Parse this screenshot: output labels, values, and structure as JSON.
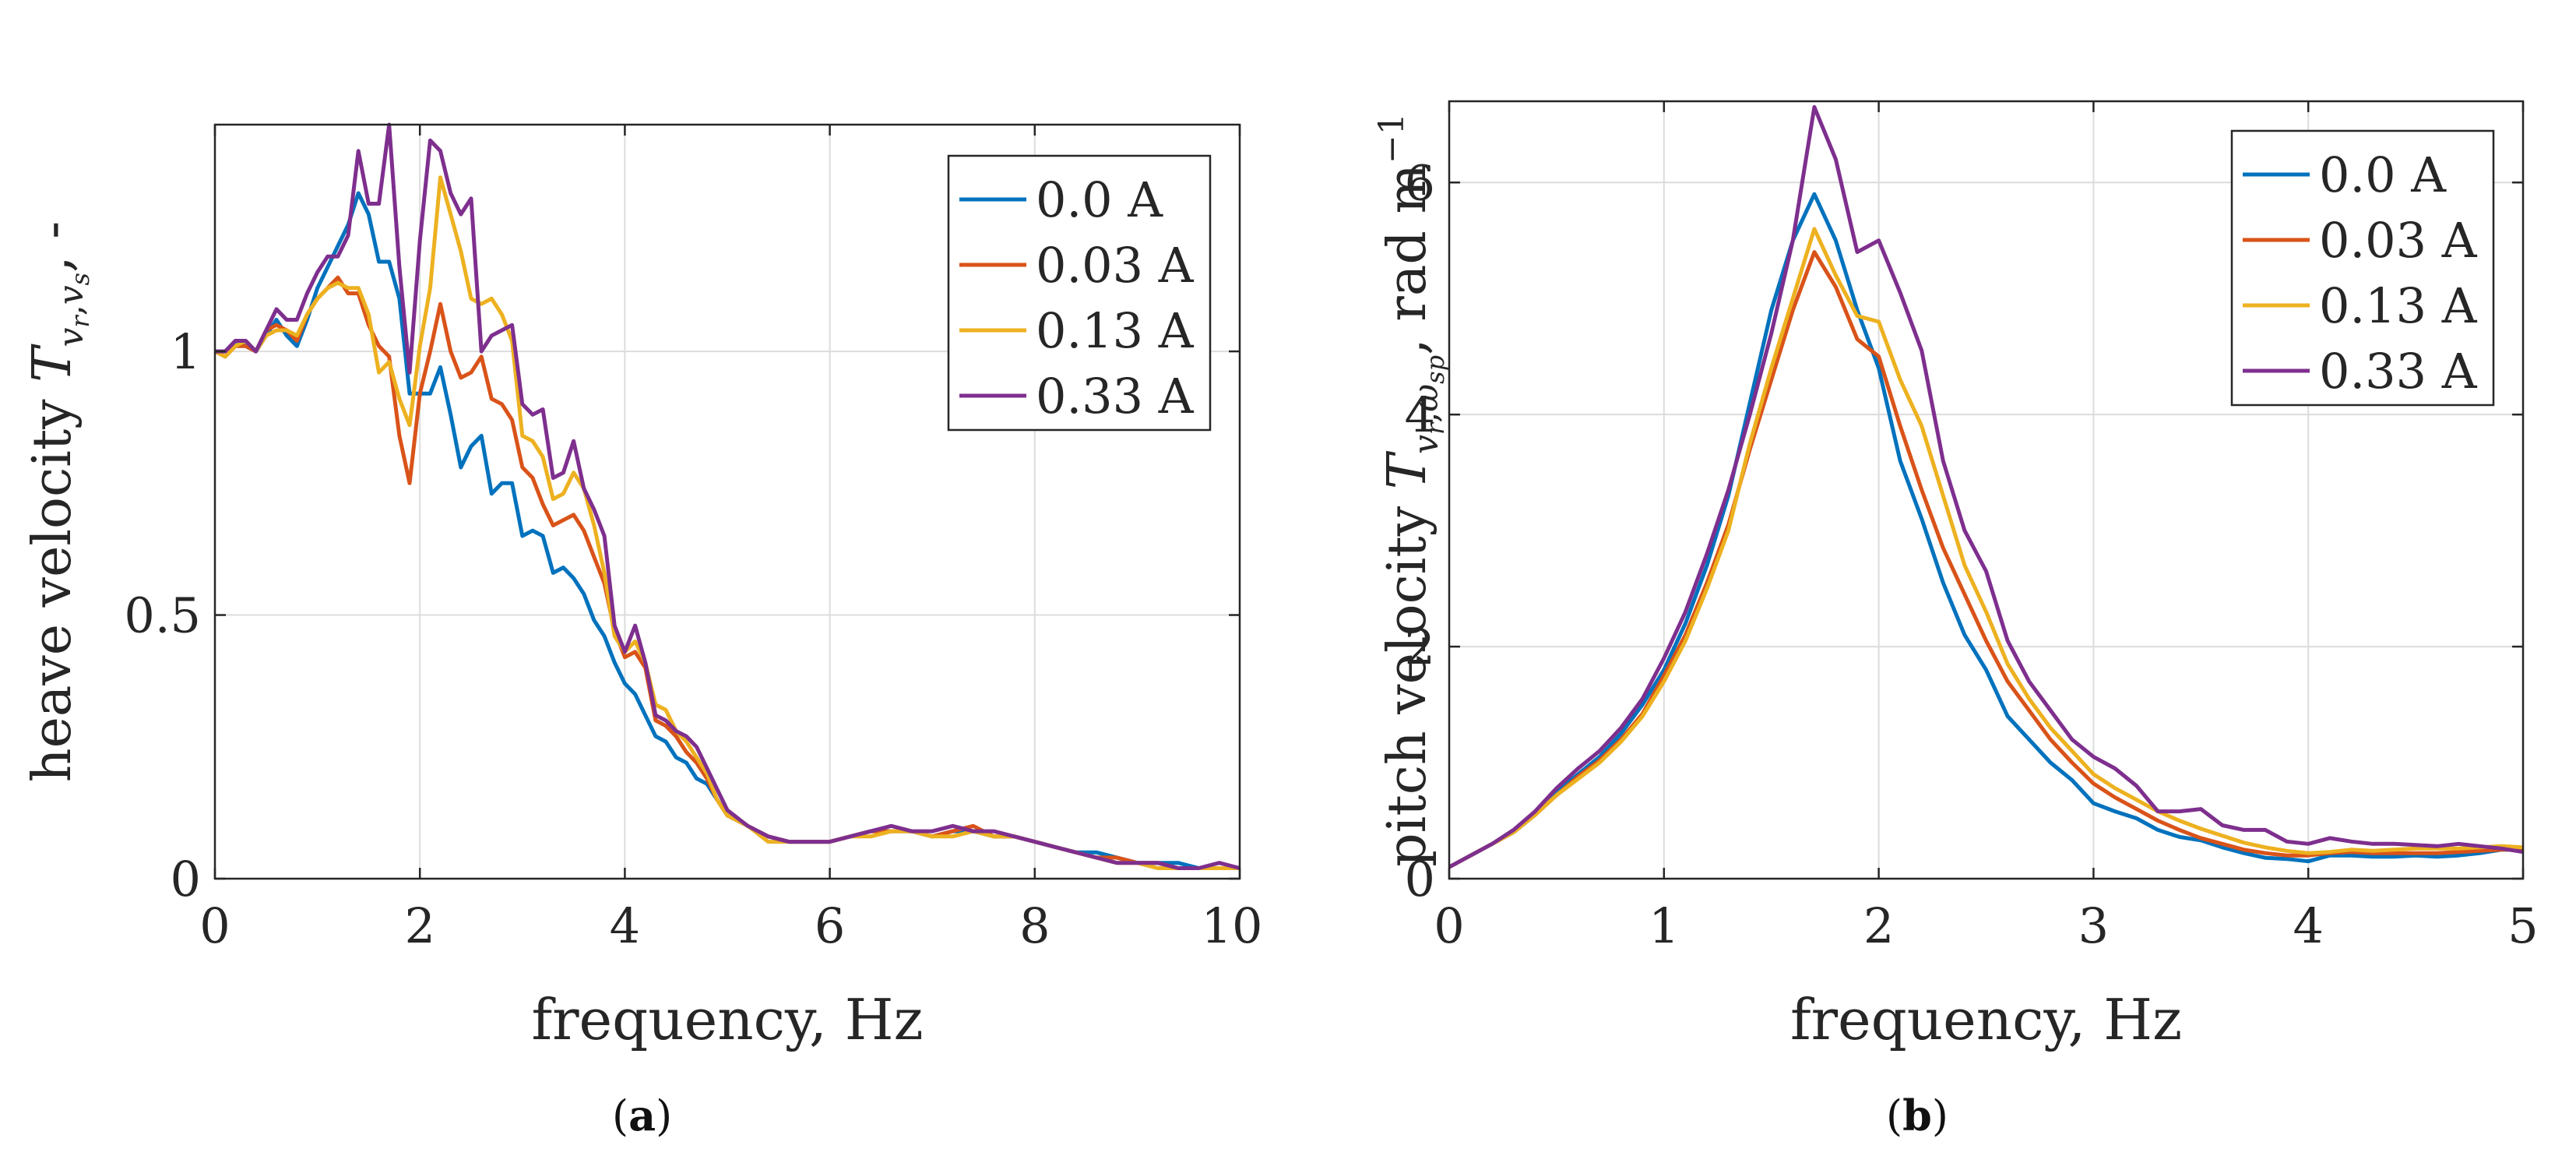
{
  "colors": {
    "series": [
      "#0072BD",
      "#D95319",
      "#EDB120",
      "#7E2F8E"
    ],
    "axis": "#262626",
    "grid": "#dcdcdc"
  },
  "chart_data": [
    {
      "type": "line",
      "panel_label": "a",
      "xlabel": "frequency, Hz",
      "ylabel_prefix": "heave velocity ",
      "ylabel_symbol": "T",
      "ylabel_subscript": "v",
      "ylabel_sub_r": "r",
      "ylabel_sub_sep": ",",
      "ylabel_sub2": "v",
      "ylabel_sub2_s": "s",
      "ylabel_suffix": ", -",
      "xlim": [
        0,
        10
      ],
      "ylim": [
        0,
        1.43
      ],
      "xticks": [
        0,
        2,
        4,
        6,
        8,
        10
      ],
      "xtick_labels": [
        "0",
        "2",
        "4",
        "6",
        "8",
        "10"
      ],
      "yticks": [
        0,
        0.5,
        1
      ],
      "ytick_labels": [
        "0",
        "0.5",
        "1"
      ],
      "grid": true,
      "legend_position": "top-right",
      "x": [
        0.0,
        0.1,
        0.2,
        0.3,
        0.4,
        0.5,
        0.6,
        0.7,
        0.8,
        0.9,
        1.0,
        1.1,
        1.2,
        1.3,
        1.4,
        1.5,
        1.6,
        1.7,
        1.8,
        1.9,
        2.0,
        2.1,
        2.2,
        2.3,
        2.4,
        2.5,
        2.6,
        2.7,
        2.8,
        2.9,
        3.0,
        3.1,
        3.2,
        3.3,
        3.4,
        3.5,
        3.6,
        3.7,
        3.8,
        3.9,
        4.0,
        4.1,
        4.2,
        4.3,
        4.4,
        4.5,
        4.6,
        4.7,
        4.8,
        4.9,
        5.0,
        5.2,
        5.4,
        5.6,
        5.8,
        6.0,
        6.2,
        6.4,
        6.6,
        6.8,
        7.0,
        7.2,
        7.4,
        7.6,
        7.8,
        8.0,
        8.2,
        8.4,
        8.6,
        8.8,
        9.0,
        9.2,
        9.4,
        9.6,
        9.8,
        10.0
      ],
      "series": [
        {
          "name": "0.0 A",
          "values": [
            1.0,
            1.0,
            1.02,
            1.01,
            1.0,
            1.03,
            1.06,
            1.03,
            1.01,
            1.06,
            1.12,
            1.16,
            1.2,
            1.24,
            1.3,
            1.26,
            1.17,
            1.17,
            1.1,
            0.92,
            0.92,
            0.92,
            0.97,
            0.88,
            0.78,
            0.82,
            0.84,
            0.73,
            0.75,
            0.75,
            0.65,
            0.66,
            0.65,
            0.58,
            0.59,
            0.57,
            0.54,
            0.49,
            0.46,
            0.41,
            0.37,
            0.35,
            0.31,
            0.27,
            0.26,
            0.23,
            0.22,
            0.19,
            0.18,
            0.15,
            0.12,
            0.1,
            0.08,
            0.07,
            0.07,
            0.07,
            0.08,
            0.09,
            0.09,
            0.09,
            0.08,
            0.09,
            0.09,
            0.08,
            0.08,
            0.07,
            0.06,
            0.05,
            0.05,
            0.04,
            0.03,
            0.03,
            0.03,
            0.02,
            0.02,
            0.02
          ]
        },
        {
          "name": "0.03 A",
          "values": [
            1.0,
            0.99,
            1.01,
            1.01,
            1.0,
            1.04,
            1.05,
            1.04,
            1.02,
            1.07,
            1.1,
            1.12,
            1.14,
            1.11,
            1.11,
            1.05,
            1.01,
            0.99,
            0.84,
            0.75,
            0.92,
            1.0,
            1.09,
            1.0,
            0.95,
            0.96,
            0.99,
            0.91,
            0.9,
            0.87,
            0.78,
            0.76,
            0.71,
            0.67,
            0.68,
            0.69,
            0.66,
            0.61,
            0.56,
            0.47,
            0.42,
            0.43,
            0.4,
            0.3,
            0.29,
            0.27,
            0.24,
            0.22,
            0.19,
            0.15,
            0.12,
            0.1,
            0.08,
            0.07,
            0.07,
            0.07,
            0.08,
            0.09,
            0.09,
            0.09,
            0.08,
            0.09,
            0.1,
            0.08,
            0.08,
            0.07,
            0.06,
            0.05,
            0.04,
            0.04,
            0.03,
            0.03,
            0.02,
            0.02,
            0.02,
            0.02
          ]
        },
        {
          "name": "0.13 A",
          "values": [
            1.0,
            0.99,
            1.01,
            1.02,
            1.0,
            1.03,
            1.04,
            1.04,
            1.03,
            1.07,
            1.1,
            1.12,
            1.13,
            1.12,
            1.12,
            1.07,
            0.96,
            0.98,
            0.91,
            0.86,
            1.01,
            1.12,
            1.33,
            1.26,
            1.19,
            1.1,
            1.09,
            1.1,
            1.07,
            1.02,
            0.84,
            0.83,
            0.8,
            0.72,
            0.73,
            0.77,
            0.74,
            0.67,
            0.58,
            0.46,
            0.43,
            0.45,
            0.41,
            0.33,
            0.32,
            0.28,
            0.26,
            0.23,
            0.2,
            0.15,
            0.12,
            0.1,
            0.07,
            0.07,
            0.07,
            0.07,
            0.08,
            0.08,
            0.09,
            0.09,
            0.08,
            0.08,
            0.09,
            0.08,
            0.08,
            0.07,
            0.06,
            0.05,
            0.04,
            0.03,
            0.03,
            0.02,
            0.02,
            0.02,
            0.02,
            0.02
          ]
        },
        {
          "name": "0.33 A",
          "values": [
            1.0,
            1.0,
            1.02,
            1.02,
            1.0,
            1.04,
            1.08,
            1.06,
            1.06,
            1.11,
            1.15,
            1.18,
            1.18,
            1.22,
            1.38,
            1.28,
            1.28,
            1.43,
            1.16,
            0.96,
            1.21,
            1.4,
            1.38,
            1.3,
            1.26,
            1.29,
            1.0,
            1.03,
            1.04,
            1.05,
            0.9,
            0.88,
            0.89,
            0.76,
            0.77,
            0.83,
            0.74,
            0.7,
            0.65,
            0.48,
            0.43,
            0.48,
            0.41,
            0.31,
            0.3,
            0.28,
            0.27,
            0.25,
            0.21,
            0.17,
            0.13,
            0.1,
            0.08,
            0.07,
            0.07,
            0.07,
            0.08,
            0.09,
            0.1,
            0.09,
            0.09,
            0.1,
            0.09,
            0.09,
            0.08,
            0.07,
            0.06,
            0.05,
            0.04,
            0.03,
            0.03,
            0.03,
            0.02,
            0.02,
            0.03,
            0.02
          ]
        }
      ]
    },
    {
      "type": "line",
      "panel_label": "b",
      "xlabel": "frequency, Hz",
      "ylabel_prefix": "pitch velocity ",
      "ylabel_symbol": "T",
      "ylabel_subscript": "v",
      "ylabel_sub_r": "r",
      "ylabel_sub_sep": ",",
      "ylabel_sub2": "ω",
      "ylabel_sub2_s": "sp",
      "ylabel_suffix": ", rad m",
      "ylabel_sup": "−1",
      "xlim": [
        0,
        5
      ],
      "ylim": [
        0,
        6.7
      ],
      "xticks": [
        0,
        1,
        2,
        3,
        4,
        5
      ],
      "xtick_labels": [
        "0",
        "1",
        "2",
        "3",
        "4",
        "5"
      ],
      "yticks": [
        0,
        2,
        4,
        6
      ],
      "ytick_labels": [
        "0",
        "2",
        "4",
        "6"
      ],
      "grid": true,
      "legend_position": "top-right",
      "x": [
        0.0,
        0.1,
        0.2,
        0.3,
        0.4,
        0.5,
        0.6,
        0.7,
        0.8,
        0.9,
        1.0,
        1.1,
        1.2,
        1.3,
        1.4,
        1.5,
        1.6,
        1.7,
        1.8,
        1.9,
        2.0,
        2.1,
        2.2,
        2.3,
        2.4,
        2.5,
        2.6,
        2.7,
        2.8,
        2.9,
        3.0,
        3.1,
        3.2,
        3.3,
        3.4,
        3.5,
        3.6,
        3.7,
        3.8,
        3.9,
        4.0,
        4.1,
        4.2,
        4.3,
        4.4,
        4.5,
        4.6,
        4.7,
        4.8,
        4.9,
        5.0
      ],
      "series": [
        {
          "name": "0.0 A",
          "values": [
            0.1,
            0.2,
            0.3,
            0.4,
            0.55,
            0.75,
            0.9,
            1.05,
            1.25,
            1.5,
            1.8,
            2.2,
            2.7,
            3.3,
            4.1,
            4.9,
            5.5,
            5.9,
            5.5,
            4.9,
            4.4,
            3.6,
            3.1,
            2.55,
            2.1,
            1.8,
            1.4,
            1.2,
            1.0,
            0.85,
            0.65,
            0.58,
            0.52,
            0.42,
            0.36,
            0.33,
            0.27,
            0.22,
            0.18,
            0.17,
            0.15,
            0.2,
            0.2,
            0.19,
            0.19,
            0.2,
            0.19,
            0.2,
            0.22,
            0.25,
            0.25
          ]
        },
        {
          "name": "0.03 A",
          "values": [
            0.1,
            0.2,
            0.3,
            0.4,
            0.55,
            0.72,
            0.88,
            1.02,
            1.2,
            1.42,
            1.75,
            2.1,
            2.55,
            3.05,
            3.7,
            4.3,
            4.9,
            5.4,
            5.1,
            4.65,
            4.5,
            3.9,
            3.35,
            2.85,
            2.45,
            2.05,
            1.7,
            1.45,
            1.2,
            1.0,
            0.82,
            0.7,
            0.6,
            0.5,
            0.42,
            0.35,
            0.3,
            0.25,
            0.22,
            0.2,
            0.2,
            0.22,
            0.23,
            0.22,
            0.22,
            0.22,
            0.22,
            0.23,
            0.24,
            0.25,
            0.25
          ]
        },
        {
          "name": "0.13 A",
          "values": [
            0.1,
            0.2,
            0.3,
            0.4,
            0.55,
            0.72,
            0.86,
            1.0,
            1.18,
            1.4,
            1.7,
            2.05,
            2.5,
            3.0,
            3.75,
            4.4,
            5.0,
            5.6,
            5.2,
            4.85,
            4.8,
            4.3,
            3.9,
            3.3,
            2.7,
            2.3,
            1.85,
            1.55,
            1.3,
            1.1,
            0.9,
            0.78,
            0.68,
            0.58,
            0.5,
            0.43,
            0.37,
            0.31,
            0.27,
            0.24,
            0.22,
            0.23,
            0.25,
            0.24,
            0.25,
            0.26,
            0.26,
            0.26,
            0.27,
            0.28,
            0.27
          ]
        },
        {
          "name": "0.33 A",
          "values": [
            0.1,
            0.2,
            0.3,
            0.42,
            0.58,
            0.78,
            0.95,
            1.1,
            1.3,
            1.55,
            1.9,
            2.3,
            2.8,
            3.35,
            4.0,
            4.7,
            5.5,
            6.65,
            6.2,
            5.4,
            5.5,
            5.05,
            4.55,
            3.6,
            3.0,
            2.65,
            2.05,
            1.7,
            1.45,
            1.2,
            1.05,
            0.95,
            0.8,
            0.58,
            0.58,
            0.6,
            0.46,
            0.42,
            0.42,
            0.32,
            0.3,
            0.35,
            0.32,
            0.3,
            0.3,
            0.29,
            0.28,
            0.3,
            0.28,
            0.26,
            0.23
          ]
        }
      ]
    }
  ]
}
